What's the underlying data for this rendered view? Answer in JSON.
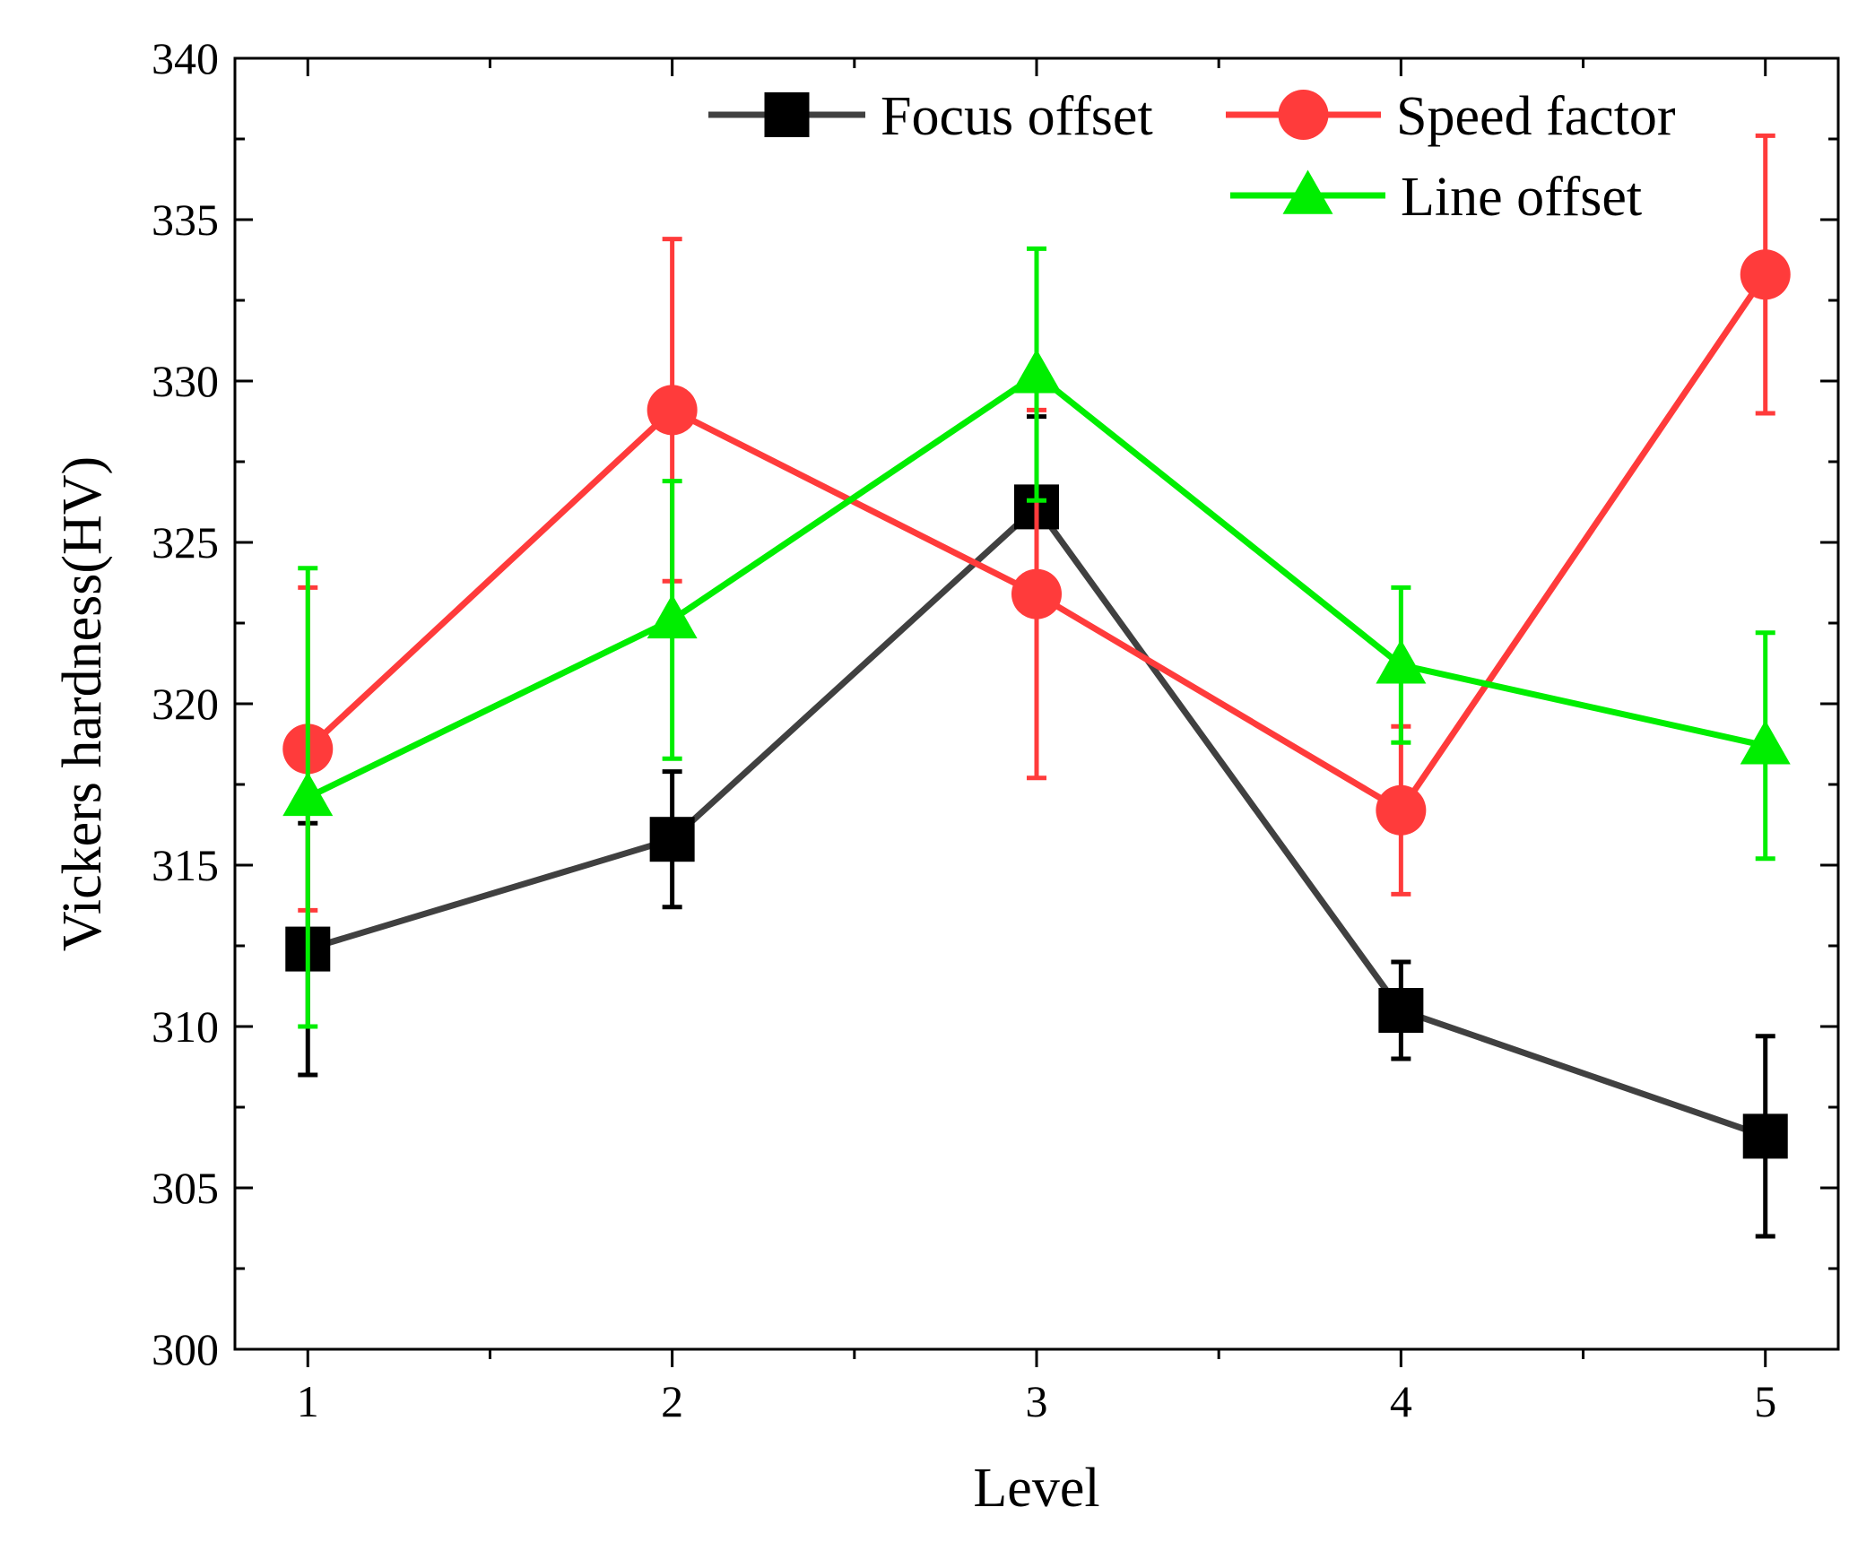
{
  "chart_data": {
    "type": "line",
    "xlabel": "Level",
    "ylabel": "Vickers hardness(HV)",
    "x": [
      1,
      2,
      3,
      4,
      5
    ],
    "xlim": [
      0.8,
      5.2
    ],
    "ylim": [
      300,
      340
    ],
    "xticks": [
      "1",
      "2",
      "3",
      "4",
      "5"
    ],
    "yticks": [
      "300",
      "305",
      "310",
      "315",
      "320",
      "325",
      "330",
      "335",
      "340"
    ],
    "grid": false,
    "legend_position": "top-right",
    "series": [
      {
        "name": "Focus offset",
        "color": "#404040",
        "marker": "square",
        "values": [
          312.4,
          315.8,
          326.1,
          310.5,
          306.6
        ],
        "error": [
          3.9,
          2.1,
          2.8,
          1.5,
          3.1
        ]
      },
      {
        "name": "Speed factor",
        "color": "#ff3b3b",
        "marker": "circle",
        "values": [
          318.6,
          329.1,
          323.4,
          316.7,
          333.3
        ],
        "error": [
          5.0,
          5.3,
          5.7,
          2.6,
          4.3
        ]
      },
      {
        "name": "Line offset",
        "color": "#00ee00",
        "marker": "triangle",
        "values": [
          317.1,
          322.6,
          330.2,
          321.2,
          318.7
        ],
        "error": [
          7.1,
          4.3,
          3.9,
          2.4,
          3.5
        ]
      }
    ]
  }
}
